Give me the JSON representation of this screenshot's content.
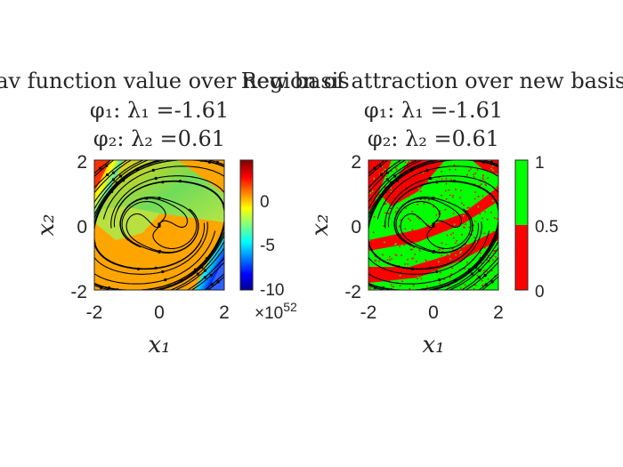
{
  "chart_data": [
    {
      "type": "heatmap",
      "title_lines": [
        "onav function value over new basis",
        "φ₁: λ₁ =-1.61",
        "φ₂: λ₂ =0.61"
      ],
      "xlabel": "x₁",
      "ylabel": "x₂",
      "xlim": [
        -2,
        2
      ],
      "ylim": [
        -2,
        2
      ],
      "x_ticks": [
        "-2",
        "0",
        "2"
      ],
      "y_ticks": [
        "-2",
        "0",
        "2"
      ],
      "colorbar": {
        "colormap": "jet",
        "range": [
          -10,
          3.5
        ],
        "ticks": [
          "0",
          "-5",
          "-10"
        ],
        "tick_values": [
          0,
          -5,
          -10
        ],
        "exponent_label": "×10",
        "exponent": "52"
      },
      "overlay": "streamlines",
      "colors": {
        "dominant": "#ffa500",
        "band": "#7ddc5a",
        "stream": "#000000"
      }
    },
    {
      "type": "heatmap",
      "title_lines": [
        "Region of attraction over new basis",
        "φ₁: λ₁ =-1.61",
        "φ₂: λ₂ =0.61"
      ],
      "xlabel": "x₁",
      "ylabel": "x₂",
      "xlim": [
        -2,
        2
      ],
      "ylim": [
        -2,
        2
      ],
      "x_ticks": [
        "-2",
        "0",
        "2"
      ],
      "y_ticks": [
        "-2",
        "0",
        "2"
      ],
      "colorbar": {
        "colormap": "binary red/green",
        "range": [
          0,
          1
        ],
        "ticks": [
          "1",
          "0.5",
          "0"
        ],
        "tick_values": [
          1,
          0.5,
          0
        ],
        "colors": {
          "low": "#ff0000",
          "high": "#00ff00"
        }
      },
      "overlay": "streamlines",
      "colors": {
        "region_in": "#00ff00",
        "region_out": "#ff0000",
        "stream": "#000000"
      }
    }
  ]
}
